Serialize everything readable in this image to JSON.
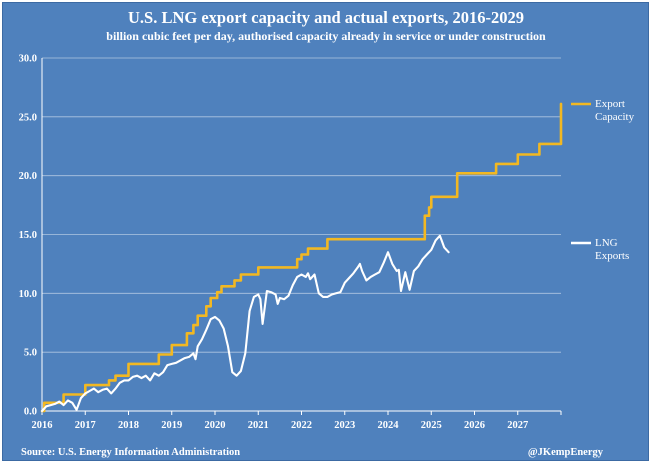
{
  "chart_data": {
    "type": "line",
    "title": "U.S. LNG export capacity and actual exports, 2016-2029",
    "subtitle": "billion cubic feet per day, authorised capacity already in service or under construction",
    "xlabel": "",
    "ylabel": "",
    "x_ticks": [
      "2016",
      "2017",
      "2018",
      "2019",
      "2020",
      "2021",
      "2022",
      "2023",
      "2024",
      "2025",
      "2026",
      "2027"
    ],
    "y_ticks": [
      "0.0",
      "5.0",
      "10.0",
      "15.0",
      "20.0",
      "25.0",
      "30.0"
    ],
    "xlim": [
      2016.0,
      2028.0
    ],
    "ylim": [
      0,
      30
    ],
    "grid": "horizontal",
    "legend_position": "right",
    "series": [
      {
        "name": "Export\nCapacity",
        "color": "#f2b822",
        "legend_lines": [
          "Export",
          "Capacity"
        ],
        "step": true,
        "points": [
          [
            2016.0,
            0.0
          ],
          [
            2016.05,
            0.7
          ],
          [
            2016.5,
            1.4
          ],
          [
            2017.0,
            2.2
          ],
          [
            2017.55,
            2.6
          ],
          [
            2017.7,
            3.0
          ],
          [
            2018.0,
            4.0
          ],
          [
            2018.7,
            4.8
          ],
          [
            2019.0,
            5.6
          ],
          [
            2019.35,
            6.6
          ],
          [
            2019.5,
            7.3
          ],
          [
            2019.6,
            8.1
          ],
          [
            2019.8,
            8.9
          ],
          [
            2019.9,
            9.6
          ],
          [
            2020.05,
            10.1
          ],
          [
            2020.15,
            10.6
          ],
          [
            2020.45,
            11.1
          ],
          [
            2020.6,
            11.6
          ],
          [
            2021.0,
            12.2
          ],
          [
            2021.9,
            12.9
          ],
          [
            2022.0,
            13.3
          ],
          [
            2022.15,
            13.8
          ],
          [
            2022.6,
            14.6
          ],
          [
            2024.85,
            16.6
          ],
          [
            2024.95,
            17.3
          ],
          [
            2025.0,
            18.2
          ],
          [
            2025.6,
            20.2
          ],
          [
            2026.5,
            21.0
          ],
          [
            2027.0,
            21.8
          ],
          [
            2027.5,
            22.7
          ],
          [
            2028.0,
            26.1
          ]
        ]
      },
      {
        "name": "LNG\nExports",
        "color": "#ffffff",
        "legend_lines": [
          "LNG",
          "Exports"
        ],
        "step": false,
        "points": [
          [
            2016.0,
            0.0
          ],
          [
            2016.1,
            0.4
          ],
          [
            2016.2,
            0.5
          ],
          [
            2016.3,
            0.6
          ],
          [
            2016.4,
            0.8
          ],
          [
            2016.5,
            0.5
          ],
          [
            2016.6,
            0.9
          ],
          [
            2016.7,
            0.7
          ],
          [
            2016.8,
            0.1
          ],
          [
            2016.9,
            1.1
          ],
          [
            2017.0,
            1.5
          ],
          [
            2017.1,
            1.7
          ],
          [
            2017.2,
            1.9
          ],
          [
            2017.3,
            1.6
          ],
          [
            2017.4,
            1.8
          ],
          [
            2017.5,
            1.9
          ],
          [
            2017.6,
            1.5
          ],
          [
            2017.7,
            1.9
          ],
          [
            2017.8,
            2.4
          ],
          [
            2017.9,
            2.6
          ],
          [
            2018.0,
            2.6
          ],
          [
            2018.1,
            2.9
          ],
          [
            2018.2,
            3.0
          ],
          [
            2018.3,
            2.8
          ],
          [
            2018.4,
            3.0
          ],
          [
            2018.5,
            2.6
          ],
          [
            2018.6,
            3.2
          ],
          [
            2018.7,
            3.0
          ],
          [
            2018.8,
            3.3
          ],
          [
            2018.9,
            3.9
          ],
          [
            2019.0,
            4.0
          ],
          [
            2019.1,
            4.1
          ],
          [
            2019.2,
            4.3
          ],
          [
            2019.3,
            4.5
          ],
          [
            2019.4,
            4.6
          ],
          [
            2019.5,
            4.9
          ],
          [
            2019.55,
            4.4
          ],
          [
            2019.6,
            5.5
          ],
          [
            2019.7,
            6.1
          ],
          [
            2019.8,
            6.9
          ],
          [
            2019.9,
            7.8
          ],
          [
            2020.0,
            8.0
          ],
          [
            2020.1,
            7.7
          ],
          [
            2020.2,
            7.0
          ],
          [
            2020.3,
            5.5
          ],
          [
            2020.4,
            3.3
          ],
          [
            2020.5,
            3.0
          ],
          [
            2020.6,
            3.4
          ],
          [
            2020.7,
            4.9
          ],
          [
            2020.8,
            8.5
          ],
          [
            2020.9,
            9.7
          ],
          [
            2021.0,
            9.9
          ],
          [
            2021.05,
            9.5
          ],
          [
            2021.1,
            7.4
          ],
          [
            2021.2,
            10.2
          ],
          [
            2021.3,
            10.1
          ],
          [
            2021.4,
            9.9
          ],
          [
            2021.45,
            9.1
          ],
          [
            2021.5,
            9.6
          ],
          [
            2021.6,
            9.5
          ],
          [
            2021.7,
            9.8
          ],
          [
            2021.8,
            10.7
          ],
          [
            2021.9,
            11.4
          ],
          [
            2022.0,
            11.6
          ],
          [
            2022.1,
            11.4
          ],
          [
            2022.15,
            11.7
          ],
          [
            2022.2,
            11.2
          ],
          [
            2022.3,
            11.6
          ],
          [
            2022.4,
            10.0
          ],
          [
            2022.5,
            9.7
          ],
          [
            2022.6,
            9.7
          ],
          [
            2022.7,
            9.9
          ],
          [
            2022.8,
            10.0
          ],
          [
            2022.9,
            10.1
          ],
          [
            2023.0,
            10.9
          ],
          [
            2023.1,
            11.3
          ],
          [
            2023.2,
            11.7
          ],
          [
            2023.3,
            12.2
          ],
          [
            2023.35,
            12.5
          ],
          [
            2023.4,
            11.9
          ],
          [
            2023.5,
            11.1
          ],
          [
            2023.6,
            11.4
          ],
          [
            2023.7,
            11.6
          ],
          [
            2023.8,
            11.8
          ],
          [
            2023.9,
            12.6
          ],
          [
            2024.0,
            13.5
          ],
          [
            2024.1,
            12.5
          ],
          [
            2024.2,
            11.9
          ],
          [
            2024.25,
            12.0
          ],
          [
            2024.3,
            10.2
          ],
          [
            2024.4,
            11.8
          ],
          [
            2024.5,
            10.3
          ],
          [
            2024.6,
            11.9
          ],
          [
            2024.7,
            12.3
          ],
          [
            2024.8,
            12.9
          ],
          [
            2024.9,
            13.3
          ],
          [
            2025.0,
            13.7
          ],
          [
            2025.1,
            14.5
          ],
          [
            2025.2,
            14.9
          ],
          [
            2025.25,
            14.4
          ],
          [
            2025.3,
            13.9
          ],
          [
            2025.4,
            13.5
          ]
        ]
      }
    ]
  },
  "footer": {
    "source": "Source: U.S. Energy Information Administration",
    "credit": "@JKempEnergy"
  }
}
